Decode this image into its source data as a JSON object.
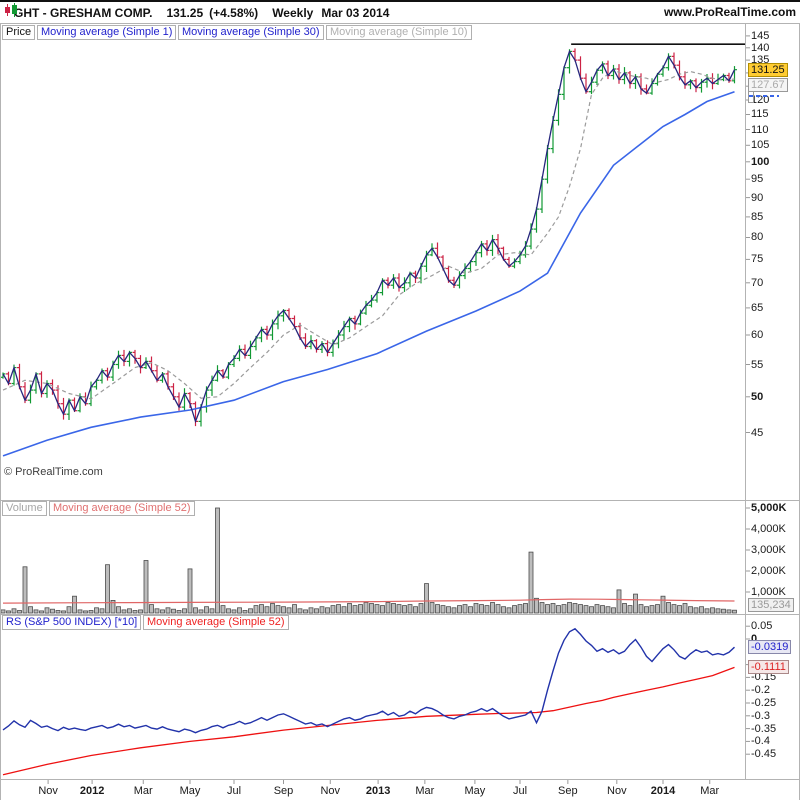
{
  "header": {
    "symbol_title": "GHT - GRESHAM COMP.",
    "last_price": "131.25",
    "change": "(+4.58%)",
    "timeframe": "Weekly",
    "date": "Mar 03 2014",
    "site": "www.ProRealTime.com"
  },
  "price_panel": {
    "legend": [
      {
        "label": "Price",
        "color": "#111111"
      },
      {
        "label": "Moving average (Simple 1)",
        "color": "#2222cc"
      },
      {
        "label": "Moving average (Simple 30)",
        "color": "#2222cc"
      },
      {
        "label": "Moving average (Simple 10)",
        "color": "#b0b0b0"
      }
    ],
    "watermark": "© ProRealTime.com",
    "last_price_box": "131.25",
    "ma10_box": "127.67",
    "axis_ticks": [
      {
        "t": "145",
        "v": 145
      },
      {
        "t": "140",
        "v": 140
      },
      {
        "t": "135",
        "v": 135
      },
      {
        "t": "120",
        "v": 120
      },
      {
        "t": "115",
        "v": 115
      },
      {
        "t": "110",
        "v": 110
      },
      {
        "t": "105",
        "v": 105
      },
      {
        "t": "100",
        "v": 100,
        "bold": true
      },
      {
        "t": "95",
        "v": 95
      },
      {
        "t": "90",
        "v": 90
      },
      {
        "t": "85",
        "v": 85
      },
      {
        "t": "80",
        "v": 80
      },
      {
        "t": "75",
        "v": 75
      },
      {
        "t": "70",
        "v": 70
      },
      {
        "t": "65",
        "v": 65
      },
      {
        "t": "60",
        "v": 60
      },
      {
        "t": "55",
        "v": 55
      },
      {
        "t": "50",
        "v": 50,
        "bold": true
      },
      {
        "t": "45",
        "v": 45
      }
    ],
    "ticks_no_label": [
      130,
      125
    ]
  },
  "volume_panel": {
    "legend": [
      {
        "label": "Volume",
        "color": "#a6a6a6"
      },
      {
        "label": "Moving average (Simple 52)",
        "color": "#e07070"
      }
    ],
    "last_volume_box": "135,234",
    "axis_ticks": [
      {
        "t": "5,000K",
        "v": 5000,
        "bold": true
      },
      {
        "t": "4,000K",
        "v": 4000
      },
      {
        "t": "3,000K",
        "v": 3000
      },
      {
        "t": "2,000K",
        "v": 2000
      },
      {
        "t": "1,000K",
        "v": 1000
      }
    ]
  },
  "rs_panel": {
    "legend": [
      {
        "label": "RS (S&P 500 INDEX) [*10]",
        "color": "#2222cc"
      },
      {
        "label": "Moving average (Simple 52)",
        "color": "#ee2222"
      }
    ],
    "rs_box": "-0.0319",
    "rs_ma_box": "-0.1111",
    "axis_ticks": [
      {
        "t": "0.05",
        "v": 0.05
      },
      {
        "t": "0",
        "v": 0,
        "bold": true
      },
      {
        "t": "-0.1",
        "v": -0.1
      },
      {
        "t": "-0.15",
        "v": -0.15
      },
      {
        "t": "-0.2",
        "v": -0.2
      },
      {
        "t": "-0.25",
        "v": -0.25
      },
      {
        "t": "-0.3",
        "v": -0.3
      },
      {
        "t": "-0.35",
        "v": -0.35
      },
      {
        "t": "-0.4",
        "v": -0.4
      },
      {
        "t": "-0.45",
        "v": -0.45
      }
    ]
  },
  "x_axis": {
    "ticks": [
      {
        "t": "Nov",
        "i": 8.2
      },
      {
        "t": "2012",
        "i": 16.2,
        "bold": true
      },
      {
        "t": "Mar",
        "i": 25.5
      },
      {
        "t": "May",
        "i": 34
      },
      {
        "t": "Jul",
        "i": 42
      },
      {
        "t": "Sep",
        "i": 51
      },
      {
        "t": "Nov",
        "i": 59.5
      },
      {
        "t": "2013",
        "i": 68.2,
        "bold": true
      },
      {
        "t": "Mar",
        "i": 76.7
      },
      {
        "t": "May",
        "i": 85.8
      },
      {
        "t": "Jul",
        "i": 94
      },
      {
        "t": "Sep",
        "i": 102.7
      },
      {
        "t": "Nov",
        "i": 111.6
      },
      {
        "t": "2014",
        "i": 120,
        "bold": true
      },
      {
        "t": "Mar",
        "i": 128.5
      }
    ]
  },
  "colors": {
    "up": "#119933",
    "down": "#cc2244",
    "close_line": "#26267d",
    "ma30": "#3a66e8",
    "ma10": "#9b9b9b",
    "resistance": "#111111",
    "vol_bar_fill": "#bdbdbd",
    "vol_bar_stroke": "#4a4a4a",
    "vol_ma": "#e06666",
    "rs_line": "#2233aa",
    "rs_ma": "#ee1111",
    "last_price_bg": "#ffcc33",
    "last_price_border": "#b38f00"
  },
  "chart_data": [
    {
      "type": "candlestick",
      "name": "GHT - GRESHAM COMP. weekly price with Simple 1/10/30 moving averages",
      "yscale": "log",
      "ylim": [
        44,
        147
      ],
      "closes": [
        53.5,
        52.0,
        54.5,
        51.5,
        49.5,
        51.0,
        53.5,
        50.5,
        52.0,
        51.0,
        49.0,
        47.5,
        49.5,
        48.0,
        50.0,
        49.0,
        51.5,
        52.5,
        54.0,
        53.0,
        55.0,
        56.5,
        55.5,
        57.0,
        56.0,
        54.5,
        55.5,
        54.0,
        52.5,
        53.5,
        51.5,
        50.0,
        48.5,
        50.5,
        49.0,
        46.5,
        48.5,
        51.0,
        52.5,
        54.0,
        53.0,
        55.0,
        56.0,
        57.5,
        56.5,
        58.0,
        59.5,
        61.0,
        60.0,
        62.0,
        63.5,
        64.5,
        63.0,
        61.5,
        59.5,
        58.0,
        59.0,
        57.5,
        58.5,
        57.0,
        58.5,
        60.0,
        61.5,
        63.0,
        62.0,
        64.0,
        65.5,
        66.5,
        68.0,
        70.5,
        69.5,
        71.0,
        69.0,
        70.0,
        72.0,
        71.0,
        73.5,
        76.0,
        77.5,
        75.5,
        73.0,
        70.5,
        69.5,
        71.5,
        73.0,
        74.5,
        76.5,
        78.5,
        77.0,
        79.5,
        77.5,
        75.0,
        73.5,
        74.5,
        76.0,
        78.0,
        82.0,
        87.0,
        95.0,
        104.0,
        113.0,
        122.0,
        132.0,
        138.5,
        135.0,
        128.0,
        123.0,
        126.5,
        131.0,
        133.5,
        129.0,
        131.5,
        127.5,
        130.0,
        126.0,
        128.5,
        124.0,
        122.5,
        126.0,
        129.5,
        132.0,
        136.5,
        133.0,
        128.5,
        125.5,
        127.0,
        124.5,
        126.5,
        128.0,
        126.0,
        127.5,
        129.0,
        127.0,
        131.25
      ],
      "ma30_points": [
        [
          0,
          42
        ],
        [
          8,
          44
        ],
        [
          16,
          45.7
        ],
        [
          25,
          47.1
        ],
        [
          34,
          48.1
        ],
        [
          42,
          49.5
        ],
        [
          51,
          52.3
        ],
        [
          59,
          54.2
        ],
        [
          68,
          56.8
        ],
        [
          77,
          60.7
        ],
        [
          86,
          64.4
        ],
        [
          94,
          68.3
        ],
        [
          99,
          72
        ],
        [
          105,
          86
        ],
        [
          111,
          99
        ],
        [
          116,
          105.5
        ],
        [
          120,
          111
        ],
        [
          124,
          115
        ],
        [
          128,
          119.5
        ],
        [
          133,
          123
        ]
      ],
      "ma10_points": [
        [
          0,
          51
        ],
        [
          4,
          52.5
        ],
        [
          8,
          52
        ],
        [
          12,
          50.5
        ],
        [
          16,
          49.7
        ],
        [
          20,
          52
        ],
        [
          24,
          54.5
        ],
        [
          27,
          55.3
        ],
        [
          30,
          54
        ],
        [
          33,
          52
        ],
        [
          36,
          49.8
        ],
        [
          39,
          50
        ],
        [
          42,
          52
        ],
        [
          45,
          54.5
        ],
        [
          48,
          57
        ],
        [
          51,
          60
        ],
        [
          54,
          61.8
        ],
        [
          57,
          60
        ],
        [
          60,
          58.3
        ],
        [
          63,
          59.5
        ],
        [
          66,
          61.5
        ],
        [
          69,
          63.5
        ],
        [
          72,
          67.5
        ],
        [
          75,
          69.8
        ],
        [
          78,
          71.5
        ],
        [
          81,
          73.5
        ],
        [
          84,
          72
        ],
        [
          87,
          73
        ],
        [
          90,
          76
        ],
        [
          93,
          76.5
        ],
        [
          96,
          76
        ],
        [
          99,
          81
        ],
        [
          101,
          85
        ],
        [
          103,
          93
        ],
        [
          105,
          104
        ],
        [
          107,
          122
        ],
        [
          109,
          128
        ],
        [
          111,
          131
        ],
        [
          113,
          129.5
        ],
        [
          115,
          128.6
        ],
        [
          117,
          128
        ],
        [
          119,
          126.5
        ],
        [
          121,
          127.5
        ],
        [
          123,
          129.5
        ],
        [
          125,
          130.5
        ],
        [
          127,
          129.5
        ],
        [
          129,
          128
        ],
        [
          131,
          127.2
        ],
        [
          133,
          127.7
        ]
      ],
      "resistance": {
        "price": 141.5,
        "start_week": 103.3,
        "end_week": 135
      },
      "last_close": 131.25,
      "ma10_last": 127.67
    },
    {
      "type": "bar",
      "name": "Volume (K) with Simple 52 moving average",
      "ylim": [
        0,
        5300
      ],
      "values_K": [
        150,
        100,
        200,
        120,
        2200,
        300,
        150,
        100,
        250,
        180,
        120,
        100,
        300,
        800,
        150,
        100,
        120,
        250,
        200,
        2300,
        600,
        300,
        150,
        200,
        120,
        150,
        2500,
        400,
        200,
        150,
        250,
        180,
        120,
        200,
        2100,
        250,
        150,
        300,
        200,
        5000,
        350,
        200,
        150,
        250,
        120,
        200,
        350,
        400,
        300,
        450,
        350,
        300,
        250,
        400,
        200,
        150,
        250,
        200,
        300,
        250,
        350,
        400,
        300,
        450,
        350,
        400,
        500,
        450,
        400,
        350,
        500,
        450,
        400,
        350,
        400,
        300,
        450,
        1400,
        500,
        400,
        350,
        300,
        250,
        350,
        400,
        300,
        450,
        400,
        350,
        500,
        400,
        300,
        250,
        350,
        400,
        450,
        2900,
        700,
        500,
        400,
        450,
        350,
        400,
        500,
        450,
        400,
        350,
        300,
        400,
        350,
        300,
        250,
        1100,
        450,
        350,
        900,
        400,
        300,
        350,
        400,
        800,
        500,
        400,
        350,
        450,
        300,
        250,
        300,
        200,
        250,
        200,
        180,
        150,
        135
      ],
      "ma52_points": [
        [
          0,
          470
        ],
        [
          16,
          490
        ],
        [
          34,
          505
        ],
        [
          51,
          520
        ],
        [
          68,
          545
        ],
        [
          77,
          570
        ],
        [
          86,
          590
        ],
        [
          94,
          610
        ],
        [
          98,
          640
        ],
        [
          103,
          660
        ],
        [
          108,
          655
        ],
        [
          112,
          645
        ],
        [
          116,
          630
        ],
        [
          120,
          615
        ],
        [
          126,
          590
        ],
        [
          133,
          570
        ]
      ],
      "last_volume": 135234
    },
    {
      "type": "line",
      "name": "RS (S&P 500 INDEX) [*10] with Simple 52 moving average",
      "ylim": [
        -0.51,
        0.07
      ],
      "values": [
        -0.355,
        -0.34,
        -0.32,
        -0.335,
        -0.345,
        -0.318,
        -0.33,
        -0.345,
        -0.34,
        -0.35,
        -0.358,
        -0.345,
        -0.353,
        -0.348,
        -0.353,
        -0.357,
        -0.348,
        -0.343,
        -0.338,
        -0.348,
        -0.343,
        -0.333,
        -0.343,
        -0.338,
        -0.348,
        -0.343,
        -0.338,
        -0.348,
        -0.352,
        -0.343,
        -0.352,
        -0.357,
        -0.362,
        -0.352,
        -0.357,
        -0.366,
        -0.357,
        -0.352,
        -0.342,
        -0.337,
        -0.347,
        -0.337,
        -0.332,
        -0.322,
        -0.332,
        -0.327,
        -0.317,
        -0.307,
        -0.317,
        -0.307,
        -0.297,
        -0.292,
        -0.302,
        -0.312,
        -0.322,
        -0.332,
        -0.327,
        -0.337,
        -0.332,
        -0.342,
        -0.332,
        -0.322,
        -0.312,
        -0.307,
        -0.317,
        -0.312,
        -0.302,
        -0.297,
        -0.292,
        -0.282,
        -0.297,
        -0.287,
        -0.302,
        -0.297,
        -0.282,
        -0.292,
        -0.277,
        -0.267,
        -0.272,
        -0.282,
        -0.297,
        -0.307,
        -0.312,
        -0.302,
        -0.297,
        -0.287,
        -0.282,
        -0.272,
        -0.282,
        -0.272,
        -0.287,
        -0.302,
        -0.312,
        -0.307,
        -0.302,
        -0.297,
        -0.282,
        -0.327,
        -0.282,
        -0.2,
        -0.125,
        -0.055,
        -0.005,
        0.028,
        0.04,
        0.018,
        -0.008,
        -0.025,
        -0.048,
        -0.038,
        -0.052,
        -0.042,
        -0.058,
        -0.048,
        -0.022,
        -0.002,
        -0.032,
        -0.068,
        -0.088,
        -0.062,
        -0.038,
        -0.022,
        -0.042,
        -0.068,
        -0.078,
        -0.058,
        -0.042,
        -0.052,
        -0.047,
        -0.062,
        -0.057,
        -0.062,
        -0.052,
        -0.0319
      ],
      "ma52_points": [
        [
          0,
          -0.53
        ],
        [
          8,
          -0.49
        ],
        [
          16,
          -0.455
        ],
        [
          25,
          -0.425
        ],
        [
          34,
          -0.4
        ],
        [
          42,
          -0.382
        ],
        [
          51,
          -0.356
        ],
        [
          59,
          -0.338
        ],
        [
          68,
          -0.318
        ],
        [
          77,
          -0.302
        ],
        [
          86,
          -0.294
        ],
        [
          90,
          -0.291
        ],
        [
          94,
          -0.289
        ],
        [
          97,
          -0.287
        ],
        [
          100,
          -0.28
        ],
        [
          103,
          -0.266
        ],
        [
          106,
          -0.252
        ],
        [
          109,
          -0.24
        ],
        [
          111,
          -0.228
        ],
        [
          114,
          -0.214
        ],
        [
          117,
          -0.2
        ],
        [
          120,
          -0.187
        ],
        [
          123,
          -0.172
        ],
        [
          126,
          -0.158
        ],
        [
          129,
          -0.143
        ],
        [
          133,
          -0.111
        ]
      ],
      "last_rs": -0.0319,
      "last_rs_ma": -0.1111
    }
  ]
}
